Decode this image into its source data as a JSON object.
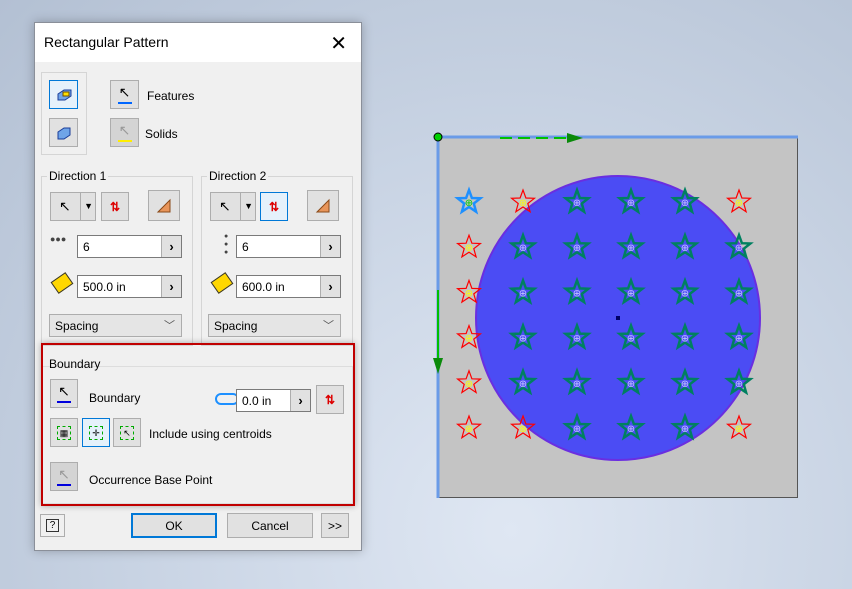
{
  "dialog": {
    "title": "Rectangular Pattern",
    "features_label": "Features",
    "solids_label": "Solids",
    "direction1": {
      "title": "Direction 1",
      "count": "6",
      "spacing": "500.0 in",
      "method": "Spacing"
    },
    "direction2": {
      "title": "Direction 2",
      "count": "6",
      "spacing": "600.0 in",
      "method": "Spacing"
    },
    "boundary": {
      "title": "Boundary",
      "select_label": "Boundary",
      "offset": "0.0 in",
      "include_label": "Include using centroids",
      "base_point_label": "Occurrence Base Point"
    },
    "ok": "OK",
    "cancel": "Cancel",
    "more": ">>"
  },
  "viewport": {
    "grid_states": [
      [
        "base",
        "excluded",
        "included",
        "included",
        "included",
        "excluded"
      ],
      [
        "excluded",
        "included",
        "included",
        "included",
        "included",
        "included"
      ],
      [
        "excluded",
        "included",
        "included",
        "included",
        "included",
        "included"
      ],
      [
        "excluded",
        "included",
        "included",
        "included",
        "included",
        "included"
      ],
      [
        "excluded",
        "included",
        "included",
        "included",
        "included",
        "included"
      ],
      [
        "excluded",
        "excluded",
        "included",
        "included",
        "included",
        "excluded"
      ]
    ],
    "colors": {
      "included": "#008060",
      "excluded": "#ff0000",
      "base": "#1e90ff",
      "boundary_fill": "#4b4cf4",
      "direction_arrow": "#00a000",
      "plate": "#c4c4c4"
    }
  }
}
